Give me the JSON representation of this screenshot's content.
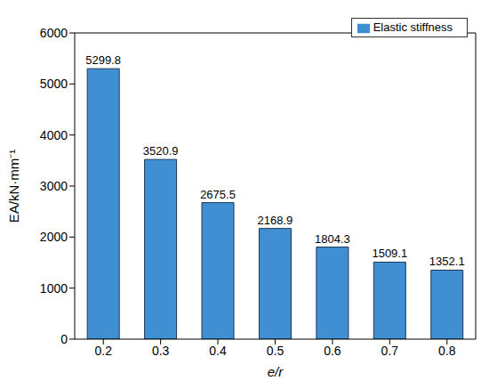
{
  "chart_data": {
    "type": "bar",
    "x_label": "e/r",
    "y_label": "EA/kN·mm⁻¹",
    "categories": [
      "0.2",
      "0.3",
      "0.4",
      "0.5",
      "0.6",
      "0.7",
      "0.8"
    ],
    "series": [
      {
        "name": "Elastic stiffness",
        "color": "#3f8fd2",
        "values": [
          5299.8,
          3520.9,
          2675.5,
          2168.9,
          1804.3,
          1509.1,
          1352.1
        ]
      }
    ],
    "ylim": [
      0,
      6000
    ],
    "yticks": [
      0,
      1000,
      2000,
      3000,
      4000,
      5000,
      6000
    ],
    "legend": "upper right",
    "data_labels": true,
    "grid": false
  }
}
